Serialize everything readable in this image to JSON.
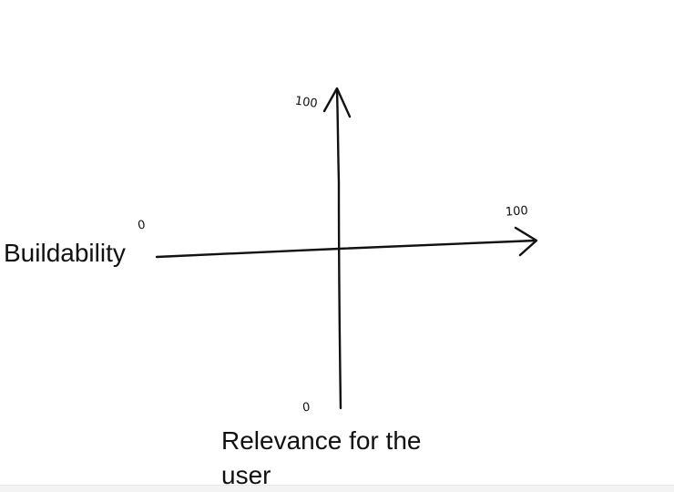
{
  "axes": {
    "x_label": "Buildability",
    "y_label_line1": "Relevance for the",
    "y_label_line2": "user",
    "x_min_tick": "0",
    "x_max_tick": "100",
    "y_min_tick": "0",
    "y_max_tick": "100"
  },
  "colors": {
    "ink": "#111111",
    "background": "#ffffff"
  }
}
